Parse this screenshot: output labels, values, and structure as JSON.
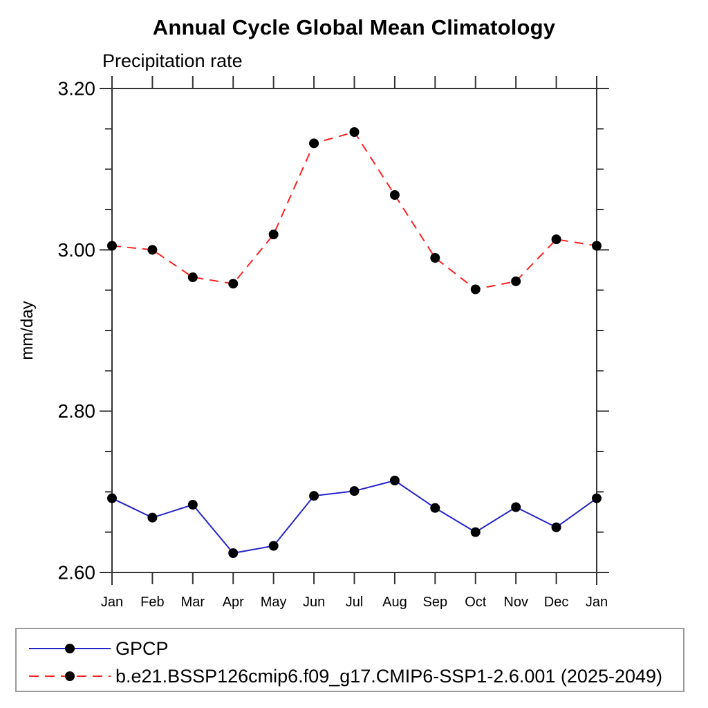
{
  "chart_data": {
    "type": "line",
    "title": "Annual Cycle Global Mean Climatology",
    "subtitle": "Precipitation rate",
    "ylabel": "mm/day",
    "xlabel": "",
    "categories": [
      "Jan",
      "Feb",
      "Mar",
      "Apr",
      "May",
      "Jun",
      "Jul",
      "Aug",
      "Sep",
      "Oct",
      "Nov",
      "Dec",
      "Jan"
    ],
    "ylim": [
      2.6,
      3.2
    ],
    "ytick_minor_step": 0.05,
    "ytick_labeled_values": [
      2.6,
      2.8,
      3.0,
      3.2
    ],
    "ytick_labels": [
      "2.60",
      "2.80",
      "3.00",
      "3.20"
    ],
    "grid": false,
    "legend_position": "bottom-left",
    "axis_color": "#333333",
    "text_color": "#000000",
    "series": [
      {
        "name": "GPCP",
        "color": "#2323cc",
        "line_style": "solid",
        "marker": "filled-circle",
        "marker_color": "#000000",
        "values": [
          2.692,
          2.668,
          2.684,
          2.624,
          2.633,
          2.695,
          2.701,
          2.714,
          2.68,
          2.65,
          2.681,
          2.656,
          2.692
        ]
      },
      {
        "name": "b.e21.BSSP126cmip6.f09_g17.CMIP6-SSP1-2.6.001 (2025-2049)",
        "color": "#ff2020",
        "line_style": "dashed",
        "marker": "filled-circle",
        "marker_color": "#000000",
        "values": [
          3.005,
          3.0,
          2.966,
          2.958,
          3.019,
          3.132,
          3.146,
          3.068,
          2.99,
          2.951,
          2.961,
          3.013,
          3.005
        ]
      }
    ]
  }
}
